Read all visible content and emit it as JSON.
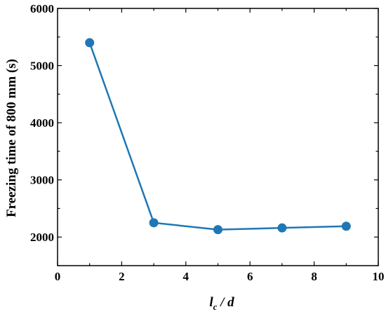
{
  "chart_data": {
    "type": "line",
    "title": "",
    "xlabel_main": "l",
    "xlabel_sub": "c",
    "xlabel_rest": " / d",
    "ylabel": "Freezing time of 800 mm (s)",
    "xlim": [
      0,
      10
    ],
    "ylim": [
      1500,
      6000
    ],
    "x_ticks": [
      0,
      2,
      4,
      6,
      8,
      10
    ],
    "y_ticks": [
      2000,
      3000,
      4000,
      5000,
      6000
    ],
    "grid": false,
    "series": [
      {
        "color": "#1f77b4",
        "x": [
          1,
          3,
          5,
          7,
          9
        ],
        "y": [
          5400,
          2250,
          2130,
          2160,
          2190
        ]
      }
    ]
  }
}
